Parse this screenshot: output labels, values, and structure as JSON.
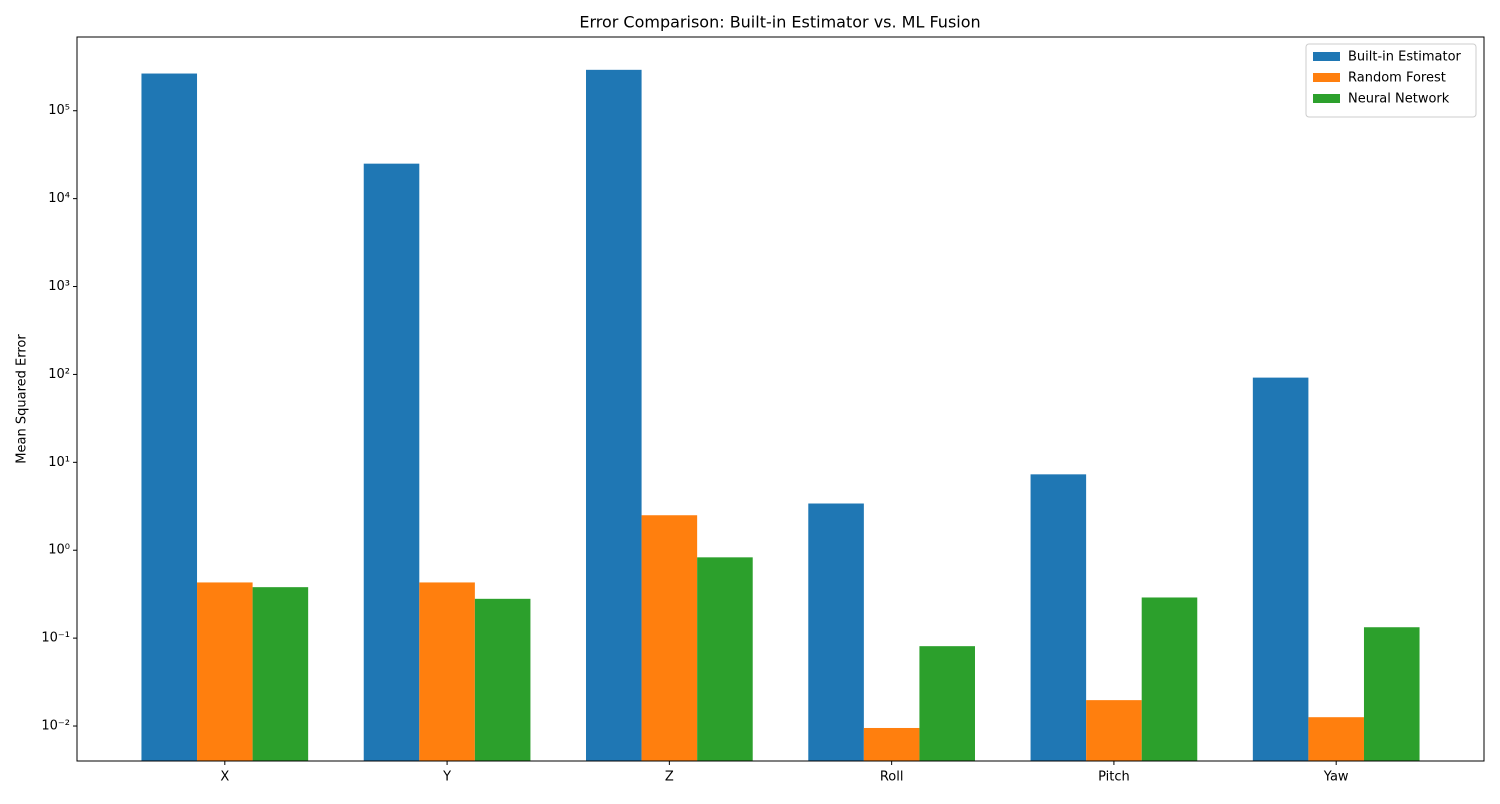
{
  "chart_data": {
    "type": "bar",
    "title": "Error Comparison: Built-in Estimator vs. ML Fusion",
    "y_label": "Mean Squared Error",
    "categories": [
      "X",
      "Y",
      "Z",
      "Roll",
      "Pitch",
      "Yaw"
    ],
    "series": [
      {
        "name": "Built-in Estimator",
        "color": "#1f77b4",
        "values": [
          265000,
          25000,
          292000,
          3.4,
          7.3,
          92
        ]
      },
      {
        "name": "Random Forest",
        "color": "#ff7f0e",
        "values": [
          0.43,
          0.43,
          2.5,
          0.0095,
          0.0197,
          0.0126
        ]
      },
      {
        "name": "Neural Network",
        "color": "#2ca02c",
        "values": [
          0.38,
          0.28,
          0.83,
          0.081,
          0.29,
          0.133
        ]
      }
    ],
    "y_scale": "log",
    "ylim": [
      0.004,
      690000
    ],
    "yticks": [
      {
        "value": 0.01,
        "label": "10⁻²"
      },
      {
        "value": 0.1,
        "label": "10⁻¹"
      },
      {
        "value": 1,
        "label": "10⁰"
      },
      {
        "value": 10,
        "label": "10¹"
      },
      {
        "value": 100,
        "label": "10²"
      },
      {
        "value": 1000,
        "label": "10³"
      },
      {
        "value": 10000,
        "label": "10⁴"
      },
      {
        "value": 100000,
        "label": "10⁵"
      }
    ],
    "grid": false,
    "legend_position": "upper right"
  }
}
